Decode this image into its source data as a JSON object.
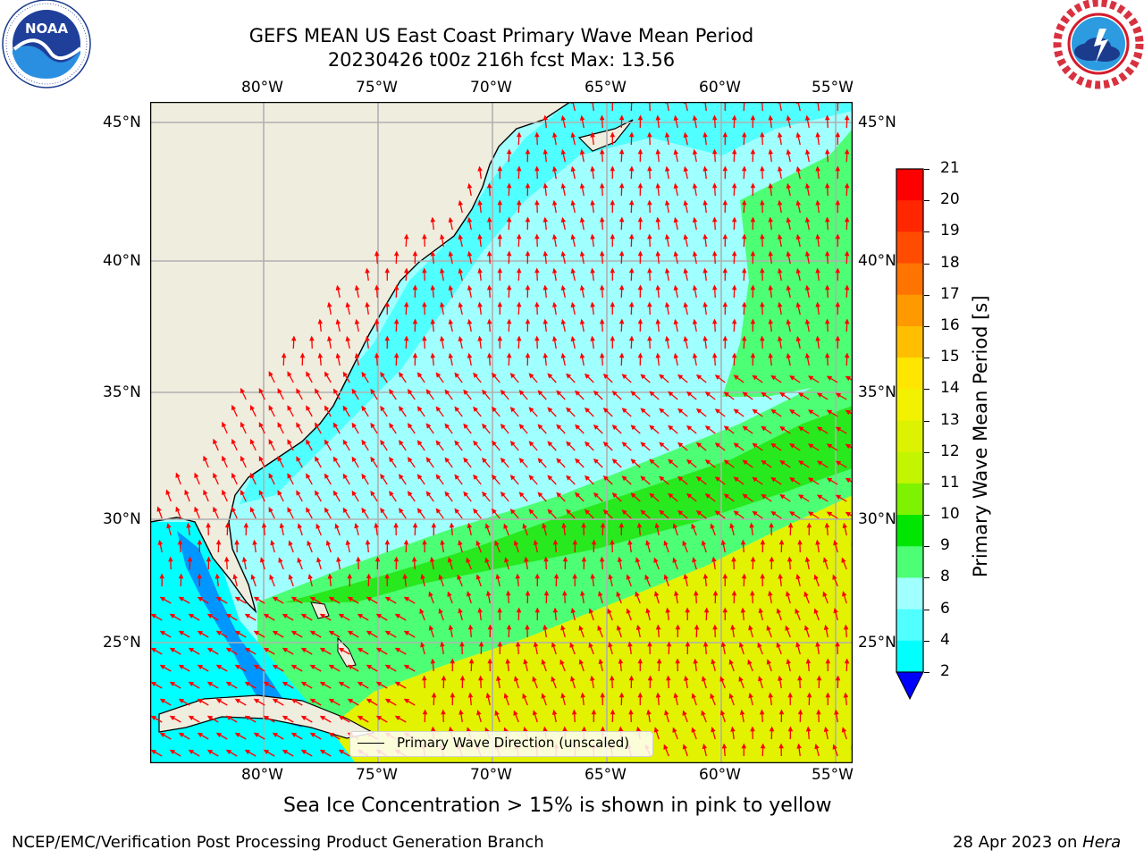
{
  "title": {
    "line1": "GEFS MEAN US East Coast Primary Wave Mean Period",
    "line2": "20230426 t00z 216h fcst   Max: 13.56"
  },
  "logos": {
    "noaa": {
      "text": "NOAA",
      "ring_text": "NATIONAL OCEANIC AND ATMOSPHERIC ADMINISTRATION · U.S. DEPARTMENT OF COMMERCE"
    },
    "nws": {
      "ring_text": "NATIONAL WEATHER SERVICE"
    }
  },
  "map": {
    "lon_ticks": [
      "80°W",
      "75°W",
      "70°W",
      "65°W",
      "60°W",
      "55°W"
    ],
    "lat_ticks": [
      "45°N",
      "40°N",
      "35°N",
      "30°N",
      "25°N"
    ],
    "legend_label": "Primary Wave Direction (unscaled)",
    "colors": {
      "land": "#efedde",
      "arrow": "#ff0000",
      "grid": "#b0b0b0",
      "coast": "#000000"
    }
  },
  "colorbar": {
    "label": "Primary Wave Mean Period [s]",
    "ticks": [
      "21",
      "20",
      "19",
      "18",
      "17",
      "16",
      "15",
      "14",
      "13",
      "12",
      "11",
      "10",
      "9",
      "8",
      "6",
      "4",
      "2"
    ],
    "colors": [
      "#ff0000",
      "#ff2600",
      "#ff4c00",
      "#ff7300",
      "#ff9900",
      "#ffbf00",
      "#ffe600",
      "#f2f200",
      "#dcf200",
      "#c3f500",
      "#7ef200",
      "#00e600",
      "#4dff74",
      "#a0ffff",
      "#50ffff",
      "#00ffff",
      "#0096ff",
      "#0000ff"
    ]
  },
  "subtitle": "Sea Ice Concentration > 15% is shown in pink to yellow",
  "footer": {
    "left": "NCEP/EMC/Verification Post Processing Product Generation Branch",
    "right_prefix": "28 Apr 2023 on ",
    "right_host": "Hera"
  }
}
